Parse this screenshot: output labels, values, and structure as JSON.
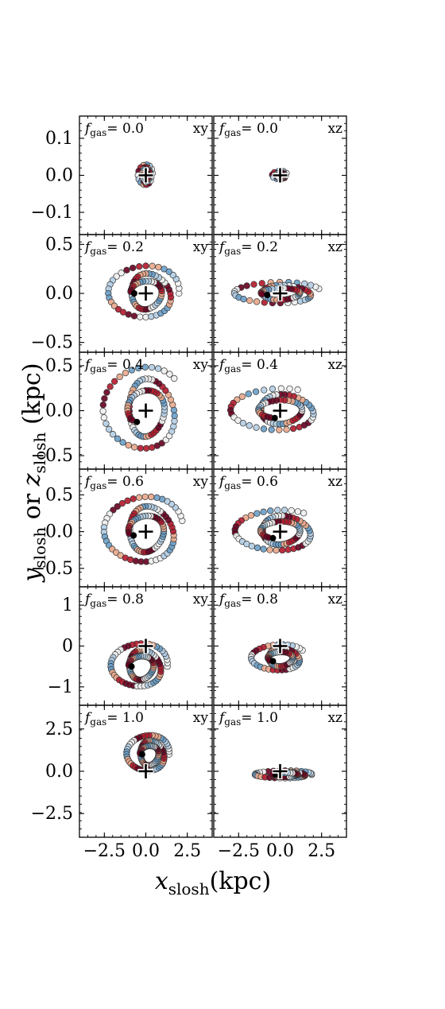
{
  "figure": {
    "xlabel_var": "x",
    "xlabel_sub": "slosh",
    "xlabel_unit": "(kpc)",
    "ylabel_var1": "y",
    "ylabel_sub1": "slosh",
    "ylabel_or": "or",
    "ylabel_var2": "z",
    "ylabel_sub2": "slosh",
    "ylabel_unit": "(kpc)",
    "fgas_symbol": "f",
    "fgas_sub": "gas",
    "colors": {
      "marker_red_dark": "#67001f",
      "marker_red": "#b2182b",
      "marker_salmon": "#e8a78b",
      "marker_white": "#f0f0f0",
      "marker_blue_light": "#b3cde3",
      "marker_blue": "#6a9ec8",
      "center_marker": "#000000"
    }
  },
  "chart_data": [
    {
      "type": "scatter",
      "row": 0,
      "col": 0,
      "fgas_value": "= 0.0",
      "projection": "xy",
      "xlim": [
        -4,
        4
      ],
      "ylim": [
        -0.16,
        0.16
      ],
      "yticks": [
        "0.1",
        "0.0",
        "−0.1"
      ],
      "ytick_values": [
        0.1,
        0.0,
        -0.1
      ],
      "xticks": [
        "−2.5",
        "0.0",
        "2.5"
      ],
      "xtick_values": [
        -2.5,
        0.0,
        2.5
      ],
      "orbit": {
        "center": [
          0,
          0
        ],
        "loops": [
          {
            "rx": 0.4,
            "ry": 0.03,
            "turns": 3,
            "phase": 0.2
          }
        ],
        "count": 45
      }
    },
    {
      "type": "scatter",
      "row": 0,
      "col": 1,
      "fgas_value": "= 0.0",
      "projection": "xz",
      "xlim": [
        -4,
        4
      ],
      "ylim": [
        -0.16,
        0.16
      ],
      "xticks": [
        "−2.5",
        "0.0",
        "2.5"
      ],
      "xtick_values": [
        -2.5,
        0.0,
        2.5
      ],
      "orbit": {
        "center": [
          0,
          0
        ],
        "loops": [
          {
            "rx": 0.4,
            "ry": 0.012,
            "turns": 3,
            "phase": 0.5
          }
        ],
        "count": 30
      }
    },
    {
      "type": "scatter",
      "row": 1,
      "col": 0,
      "fgas_value": "= 0.2",
      "projection": "xy",
      "xlim": [
        -4,
        4
      ],
      "ylim": [
        -0.6,
        0.6
      ],
      "yticks": [
        "0.5",
        "0.0",
        "−0.5"
      ],
      "ytick_values": [
        0.5,
        0.0,
        -0.5
      ],
      "xticks": [
        "−2.5",
        "0.0",
        "2.5"
      ],
      "xtick_values": [
        -2.5,
        0.0,
        2.5
      ],
      "orbit": {
        "center": [
          0,
          0
        ],
        "loops": [
          {
            "rx": 2.0,
            "ry": 0.3,
            "turns": 2.5,
            "phase": 0.0
          }
        ],
        "count": 90
      }
    },
    {
      "type": "scatter",
      "row": 1,
      "col": 1,
      "fgas_value": "= 0.2",
      "projection": "xz",
      "xlim": [
        -4,
        4
      ],
      "ylim": [
        -0.6,
        0.6
      ],
      "xticks": [
        "−2.5",
        "0.0",
        "2.5"
      ],
      "xtick_values": [
        -2.5,
        0.0,
        2.5
      ],
      "orbit": {
        "center": [
          0,
          0
        ],
        "loops": [
          {
            "rx": 2.4,
            "ry": 0.12,
            "turns": 2.5,
            "phase": 0.4
          }
        ],
        "count": 80
      }
    },
    {
      "type": "scatter",
      "row": 2,
      "col": 0,
      "fgas_value": "= 0.4",
      "projection": "xy",
      "xlim": [
        -4,
        4
      ],
      "ylim": [
        -0.65,
        0.65
      ],
      "yticks": [
        "0.5",
        "0.0",
        "−0.5"
      ],
      "ytick_values": [
        0.5,
        0.0,
        -0.5
      ],
      "xticks": [
        "−2.5",
        "0.0",
        "2.5"
      ],
      "xtick_values": [
        -2.5,
        0.0,
        2.5
      ],
      "orbit": {
        "center": [
          0,
          0
        ],
        "loops": [
          {
            "rx": 2.2,
            "ry": 0.5,
            "turns": 2.5,
            "phase": 0.8
          }
        ],
        "count": 100
      }
    },
    {
      "type": "scatter",
      "row": 2,
      "col": 1,
      "fgas_value": "= 0.4",
      "projection": "xz",
      "xlim": [
        -4,
        4
      ],
      "ylim": [
        -0.65,
        0.65
      ],
      "xticks": [
        "−2.5",
        "0.0",
        "2.5"
      ],
      "xtick_values": [
        -2.5,
        0.0,
        2.5
      ],
      "orbit": {
        "center": [
          0,
          0
        ],
        "loops": [
          {
            "rx": 2.5,
            "ry": 0.25,
            "turns": 2.5,
            "phase": 1.2
          }
        ],
        "count": 90
      }
    },
    {
      "type": "scatter",
      "row": 3,
      "col": 0,
      "fgas_value": "= 0.6",
      "projection": "xy",
      "xlim": [
        -4,
        4
      ],
      "ylim": [
        -0.75,
        0.85
      ],
      "yticks": [
        "0.5",
        "0.0",
        "−0.5"
      ],
      "ytick_values": [
        0.5,
        0.0,
        -0.5
      ],
      "xticks": [
        "−2.5",
        "0.0",
        "2.5"
      ],
      "xtick_values": [
        -2.5,
        0.0,
        2.5
      ],
      "orbit": {
        "center": [
          0,
          0
        ],
        "loops": [
          {
            "rx": 2.2,
            "ry": 0.5,
            "turns": 2.5,
            "phase": 0.3
          }
        ],
        "count": 110
      }
    },
    {
      "type": "scatter",
      "row": 3,
      "col": 1,
      "fgas_value": "= 0.6",
      "projection": "xz",
      "xlim": [
        -4,
        4
      ],
      "ylim": [
        -0.75,
        0.85
      ],
      "xticks": [
        "−2.5",
        "0.0",
        "2.5"
      ],
      "xtick_values": [
        -2.5,
        0.0,
        2.5
      ],
      "orbit": {
        "center": [
          0,
          0
        ],
        "loops": [
          {
            "rx": 2.3,
            "ry": 0.3,
            "turns": 2.5,
            "phase": 1.0
          }
        ],
        "count": 100
      }
    },
    {
      "type": "scatter",
      "row": 4,
      "col": 0,
      "fgas_value": "= 0.8",
      "projection": "xy",
      "xlim": [
        -4,
        4
      ],
      "ylim": [
        -1.45,
        1.45
      ],
      "yticks": [
        "1",
        "0",
        "−1"
      ],
      "ytick_values": [
        1,
        0,
        -1
      ],
      "xticks": [
        "−2.5",
        "0.0",
        "2.5"
      ],
      "xtick_values": [
        -2.5,
        0.0,
        2.5
      ],
      "orbit": {
        "center": [
          -0.3,
          -0.5
        ],
        "loops": [
          {
            "rx": 1.6,
            "ry": 0.6,
            "turns": 2.5,
            "phase": 0.0
          }
        ],
        "count": 110
      }
    },
    {
      "type": "scatter",
      "row": 4,
      "col": 1,
      "fgas_value": "= 0.8",
      "projection": "xz",
      "xlim": [
        -4,
        4
      ],
      "ylim": [
        -1.45,
        1.45
      ],
      "xticks": [
        "−2.5",
        "0.0",
        "2.5"
      ],
      "xtick_values": [
        -2.5,
        0.0,
        2.5
      ],
      "orbit": {
        "center": [
          0,
          -0.3
        ],
        "loops": [
          {
            "rx": 1.5,
            "ry": 0.35,
            "turns": 2.5,
            "phase": 0.6
          }
        ],
        "count": 90
      }
    },
    {
      "type": "scatter",
      "row": 5,
      "col": 0,
      "fgas_value": "= 1.0",
      "projection": "xy",
      "xlim": [
        -4,
        4
      ],
      "ylim": [
        -3.9,
        3.9
      ],
      "yticks": [
        "2.5",
        "0.0",
        "−2.5"
      ],
      "ytick_values": [
        2.5,
        0.0,
        -2.5
      ],
      "xticks": [
        "−2.5",
        "0.0",
        "2.5"
      ],
      "xtick_values": [
        -2.5,
        0.0,
        2.5
      ],
      "orbit": {
        "center": [
          0.2,
          1.0
        ],
        "loops": [
          {
            "rx": 1.2,
            "ry": 1.2,
            "turns": 2.5,
            "phase": 0.0
          }
        ],
        "count": 110
      }
    },
    {
      "type": "scatter",
      "row": 5,
      "col": 1,
      "fgas_value": "= 1.0",
      "projection": "xz",
      "xlim": [
        -4,
        4
      ],
      "ylim": [
        -3.9,
        3.9
      ],
      "xticks": [
        "−2.5",
        "0.0",
        "2.5"
      ],
      "xtick_values": [
        -2.5,
        0.0,
        2.5
      ],
      "orbit": {
        "center": [
          0.3,
          -0.2
        ],
        "loops": [
          {
            "rx": 1.6,
            "ry": 0.25,
            "turns": 2.5,
            "phase": 0.0
          }
        ],
        "count": 80
      }
    }
  ]
}
